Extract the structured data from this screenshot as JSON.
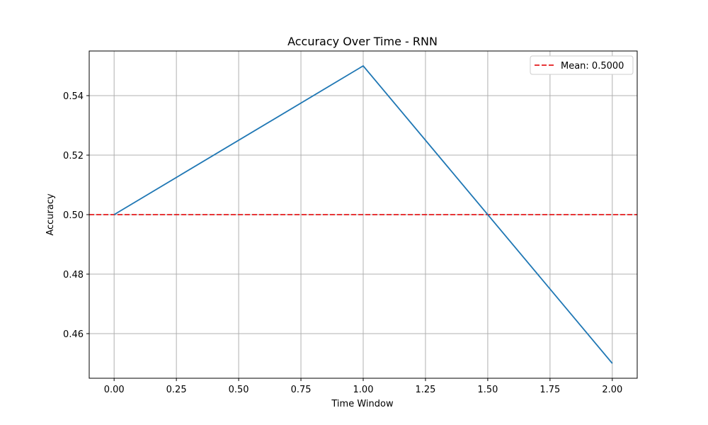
{
  "chart_data": {
    "type": "line",
    "title": "Accuracy Over Time - RNN",
    "xlabel": "Time Window",
    "ylabel": "Accuracy",
    "xlim": [
      -0.1,
      2.1
    ],
    "ylim": [
      0.445,
      0.555
    ],
    "x_ticks": [
      0.0,
      0.25,
      0.5,
      0.75,
      1.0,
      1.25,
      1.5,
      1.75,
      2.0
    ],
    "x_tick_labels": [
      "0.00",
      "0.25",
      "0.50",
      "0.75",
      "1.00",
      "1.25",
      "1.50",
      "1.75",
      "2.00"
    ],
    "y_ticks": [
      0.46,
      0.48,
      0.5,
      0.52,
      0.54
    ],
    "y_tick_labels": [
      "0.46",
      "0.48",
      "0.50",
      "0.52",
      "0.54"
    ],
    "grid": true,
    "legend_position": "top-right",
    "series": [
      {
        "x": [
          0,
          1,
          2
        ],
        "y": [
          0.5,
          0.55,
          0.45
        ],
        "color": "#1f77b4",
        "style": "solid"
      }
    ],
    "reference_lines": [
      {
        "orientation": "horizontal",
        "y": 0.5,
        "name": "Mean: 0.5000",
        "color": "#e41a1c",
        "style": "dashed"
      }
    ]
  }
}
